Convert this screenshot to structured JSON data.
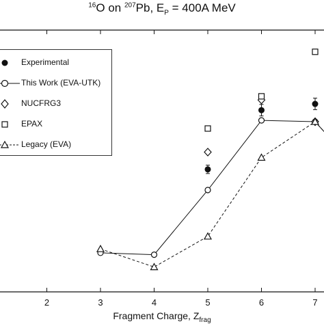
{
  "title": {
    "mass_a": "16",
    "element_a": "O on ",
    "mass_b": "207",
    "element_b": "Pb, E",
    "sub": "P",
    "rest": " = 400A MeV"
  },
  "chart_data": {
    "type": "scatter",
    "xlabel_main": "Fragment Charge, Z",
    "xlabel_sub": "frag",
    "ylabel": "",
    "x_ticks": [
      "2",
      "3",
      "4",
      "5",
      "6",
      "7"
    ],
    "xlim": [
      1.1,
      7.0
    ],
    "ylim": [
      0,
      1
    ],
    "series": [
      {
        "name": "Experimental",
        "marker": "filled-circle",
        "line": "none",
        "x": [
          5,
          6,
          7
        ],
        "y": [
          0.468,
          0.694,
          0.718
        ],
        "err": [
          0.016,
          0.022,
          0.022
        ]
      },
      {
        "name": "This Work (EVA-UTK)",
        "marker": "open-circle",
        "line": "solid",
        "x": [
          3,
          4,
          5,
          6,
          7,
          7.2
        ],
        "y": [
          0.149,
          0.142,
          0.389,
          0.655,
          0.65,
          0.605
        ]
      },
      {
        "name": "NUCFRG3",
        "marker": "open-diamond",
        "line": "none",
        "x": [
          5,
          6,
          7
        ],
        "y": [
          0.534,
          0.733,
          0.65
        ]
      },
      {
        "name": "EPAX",
        "marker": "open-square",
        "line": "none",
        "x": [
          5,
          6,
          7
        ],
        "y": [
          0.624,
          0.747,
          0.917
        ]
      },
      {
        "name": "Legacy (EVA)",
        "marker": "open-triangle",
        "line": "dashed",
        "x": [
          3,
          4,
          5,
          6,
          7,
          7.2
        ],
        "y": [
          0.164,
          0.095,
          0.212,
          0.513,
          0.65,
          0.605
        ]
      }
    ]
  }
}
